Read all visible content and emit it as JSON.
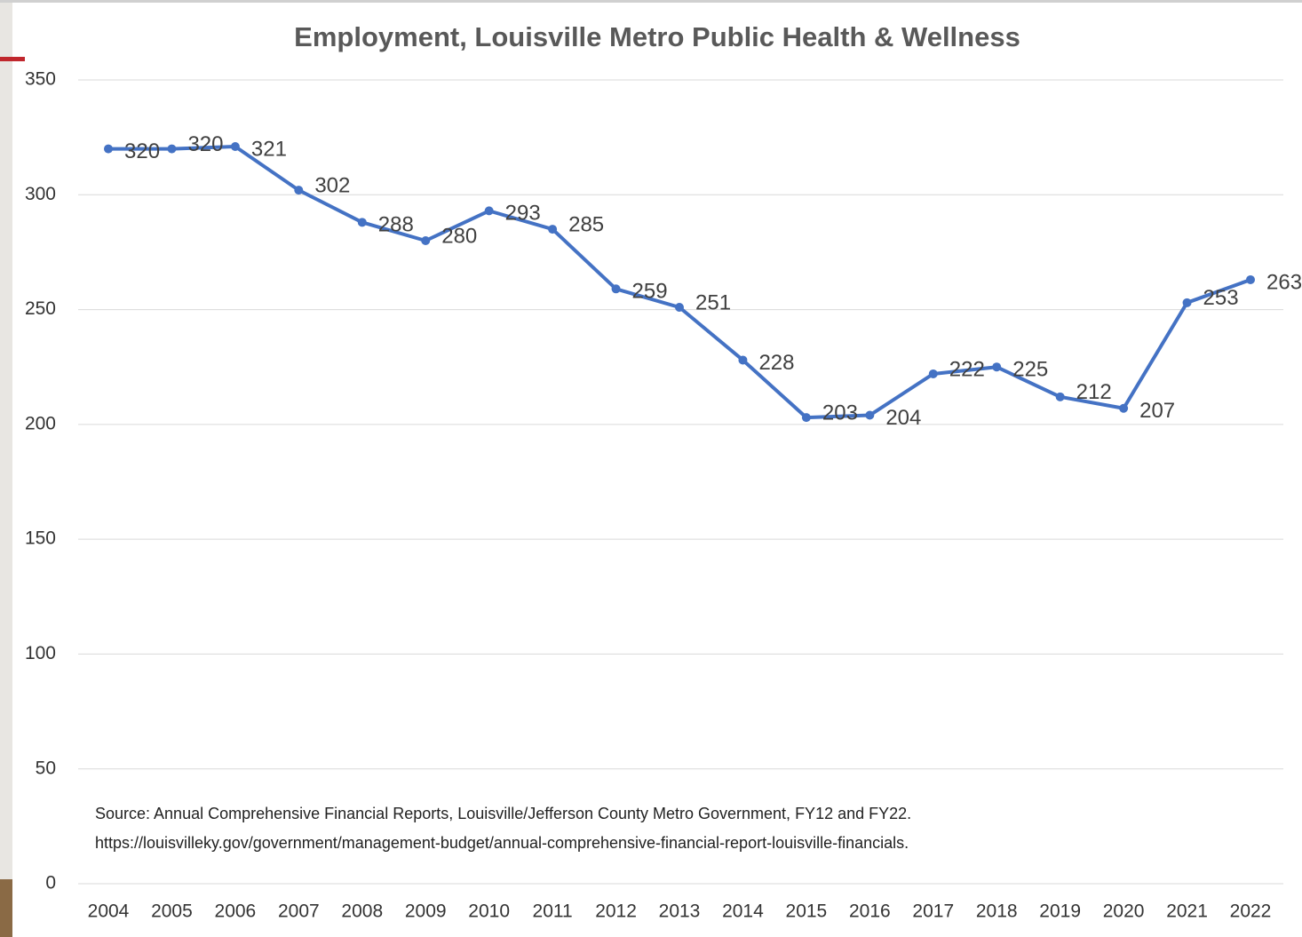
{
  "chart_data": {
    "type": "line",
    "title": "Employment, Louisville Metro Public Health & Wellness",
    "categories": [
      "2004",
      "2005",
      "2006",
      "2007",
      "2008",
      "2009",
      "2010",
      "2011",
      "2012",
      "2013",
      "2014",
      "2015",
      "2016",
      "2017",
      "2018",
      "2019",
      "2020",
      "2021",
      "2022"
    ],
    "values": [
      320,
      320,
      321,
      302,
      288,
      280,
      293,
      285,
      259,
      251,
      228,
      203,
      204,
      222,
      225,
      212,
      207,
      253,
      263
    ],
    "color": "#4472c4",
    "ylim": [
      0,
      350
    ],
    "yticks": [
      0,
      50,
      100,
      150,
      200,
      250,
      300,
      350
    ],
    "grid": true,
    "annotations": [
      "Source: Annual Comprehensive Financial Reports, Louisville/Jefferson County Metro Government, FY12 and FY22.",
      "https://louisvilleky.gov/government/management-budget/annual-comprehensive-financial-report-louisville-financials."
    ]
  }
}
